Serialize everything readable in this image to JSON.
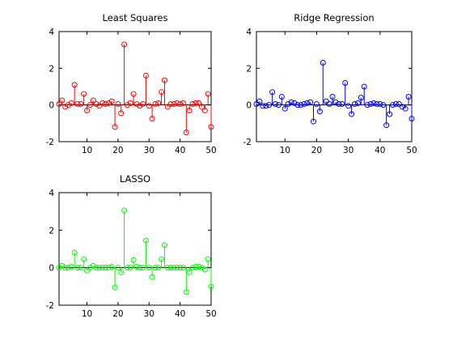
{
  "figure": {
    "background": "#ffffff"
  },
  "chart_data": [
    {
      "type": "stem",
      "title": "Least Squares",
      "color": "#ff0000",
      "xlim": [
        1,
        50
      ],
      "ylim": [
        -2,
        4
      ],
      "xticks": [
        10,
        20,
        30,
        40,
        50
      ],
      "yticks": [
        -2,
        0,
        2,
        4
      ],
      "baseline": 0,
      "marker": "circle",
      "x": [
        1,
        2,
        3,
        4,
        5,
        6,
        7,
        8,
        9,
        10,
        11,
        12,
        13,
        14,
        15,
        16,
        17,
        18,
        19,
        20,
        21,
        22,
        23,
        24,
        25,
        26,
        27,
        28,
        29,
        30,
        31,
        32,
        33,
        34,
        35,
        36,
        37,
        38,
        39,
        40,
        41,
        42,
        43,
        44,
        45,
        46,
        47,
        48,
        49,
        50
      ],
      "y": [
        0.05,
        0.25,
        -0.1,
        0.0,
        0.1,
        1.1,
        0.05,
        0.05,
        0.6,
        -0.3,
        0.0,
        0.25,
        0.05,
        -0.05,
        0.1,
        0.05,
        0.1,
        0.2,
        -1.2,
        0.05,
        -0.45,
        3.3,
        0.0,
        0.1,
        0.6,
        0.05,
        -0.05,
        0.05,
        1.6,
        -0.05,
        -0.75,
        0.05,
        0.1,
        0.7,
        1.35,
        -0.1,
        0.05,
        0.05,
        0.1,
        0.05,
        0.1,
        -1.5,
        -0.3,
        0.05,
        0.1,
        0.1,
        -0.1,
        -0.3,
        0.6,
        -1.2
      ]
    },
    {
      "type": "stem",
      "title": "Ridge Regression",
      "color": "#0000ff",
      "xlim": [
        1,
        50
      ],
      "ylim": [
        -2,
        4
      ],
      "xticks": [
        10,
        20,
        30,
        40,
        50
      ],
      "yticks": [
        -2,
        0,
        2,
        4
      ],
      "baseline": 0,
      "marker": "circle",
      "x": [
        1,
        2,
        3,
        4,
        5,
        6,
        7,
        8,
        9,
        10,
        11,
        12,
        13,
        14,
        15,
        16,
        17,
        18,
        19,
        20,
        21,
        22,
        23,
        24,
        25,
        26,
        27,
        28,
        29,
        30,
        31,
        32,
        33,
        34,
        35,
        36,
        37,
        38,
        39,
        40,
        41,
        42,
        43,
        44,
        45,
        46,
        47,
        48,
        49,
        50
      ],
      "y": [
        0.05,
        0.2,
        -0.05,
        -0.05,
        0.0,
        0.7,
        0.05,
        0.0,
        0.45,
        -0.2,
        0.05,
        0.15,
        0.1,
        0.0,
        0.0,
        0.05,
        0.1,
        0.15,
        -0.9,
        0.05,
        -0.35,
        2.3,
        0.2,
        0.05,
        0.45,
        0.15,
        0.05,
        0.05,
        1.2,
        -0.05,
        -0.5,
        0.05,
        0.1,
        0.4,
        1.0,
        0.0,
        0.05,
        0.1,
        0.05,
        0.05,
        0.0,
        -1.1,
        -0.5,
        0.0,
        0.05,
        0.05,
        -0.1,
        -0.2,
        0.45,
        -0.75
      ]
    },
    {
      "type": "stem",
      "title": "LASSO",
      "color": "#00ff00",
      "xlim": [
        1,
        50
      ],
      "ylim": [
        -2,
        4
      ],
      "xticks": [
        10,
        20,
        30,
        40,
        50
      ],
      "yticks": [
        -2,
        0,
        2,
        4
      ],
      "baseline": 0,
      "marker": "circle",
      "x": [
        1,
        2,
        3,
        4,
        5,
        6,
        7,
        8,
        9,
        10,
        11,
        12,
        13,
        14,
        15,
        16,
        17,
        18,
        19,
        20,
        21,
        22,
        23,
        24,
        25,
        26,
        27,
        28,
        29,
        30,
        31,
        32,
        33,
        34,
        35,
        36,
        37,
        38,
        39,
        40,
        41,
        42,
        43,
        44,
        45,
        46,
        47,
        48,
        49,
        50
      ],
      "y": [
        0.0,
        0.1,
        0.0,
        0.0,
        0.05,
        0.8,
        0.0,
        0.0,
        0.45,
        -0.15,
        0.0,
        0.1,
        0.0,
        0.0,
        0.0,
        0.0,
        0.0,
        0.05,
        -1.05,
        0.0,
        -0.25,
        3.05,
        0.0,
        0.0,
        0.4,
        0.05,
        0.0,
        0.0,
        1.45,
        0.0,
        -0.5,
        0.0,
        0.0,
        0.45,
        1.2,
        0.0,
        0.0,
        0.0,
        0.0,
        0.0,
        0.0,
        -1.3,
        -0.25,
        0.0,
        0.05,
        0.05,
        0.0,
        -0.1,
        0.45,
        -1.0
      ]
    }
  ]
}
